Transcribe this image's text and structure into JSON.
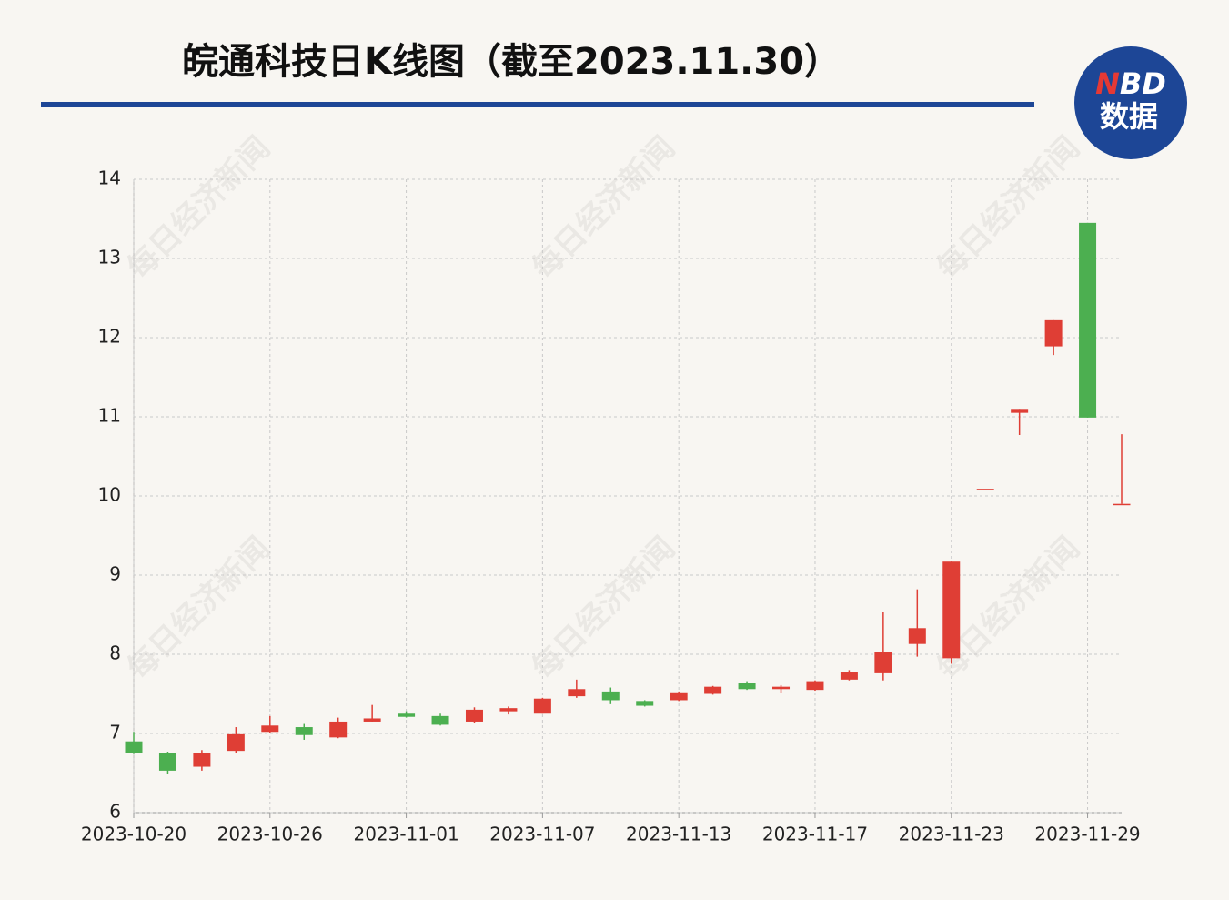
{
  "chart_data": {
    "type": "candlestick",
    "title": "皖通科技日K线图（截至2023.11.30）",
    "logo": {
      "brand": "NBD",
      "label": "数据"
    },
    "watermark": "每日经济新闻",
    "x": [
      "2023-10-20",
      null,
      null,
      null,
      "2023-10-26",
      null,
      null,
      null,
      "2023-11-01",
      null,
      null,
      null,
      "2023-11-07",
      null,
      null,
      null,
      "2023-11-13",
      null,
      null,
      null,
      "2023-11-17",
      null,
      null,
      null,
      "2023-11-23",
      null,
      null,
      null,
      "2023-11-29",
      null
    ],
    "open": [
      6.9,
      6.75,
      6.58,
      6.78,
      7.02,
      7.08,
      6.95,
      7.15,
      7.25,
      7.22,
      7.15,
      7.28,
      7.25,
      7.47,
      7.53,
      7.41,
      7.42,
      7.5,
      7.64,
      7.56,
      7.55,
      7.68,
      7.76,
      8.13,
      7.95,
      10.09,
      11.05,
      11.89,
      13.45,
      9.9
    ],
    "high": [
      7.02,
      6.77,
      6.79,
      7.08,
      7.22,
      7.12,
      7.2,
      7.36,
      7.28,
      7.25,
      7.33,
      7.34,
      7.45,
      7.68,
      7.58,
      7.42,
      7.53,
      7.6,
      7.66,
      7.61,
      7.67,
      7.8,
      8.53,
      8.82,
      9.17,
      10.09,
      11.1,
      12.22,
      13.45,
      10.78
    ],
    "low": [
      6.74,
      6.49,
      6.53,
      6.75,
      7.0,
      6.92,
      6.94,
      7.15,
      7.2,
      7.1,
      7.13,
      7.24,
      7.25,
      7.45,
      7.37,
      7.34,
      7.41,
      7.49,
      7.55,
      7.51,
      7.54,
      7.67,
      7.67,
      7.97,
      7.88,
      10.09,
      10.77,
      11.78,
      10.99,
      9.9
    ],
    "close": [
      6.75,
      6.53,
      6.75,
      6.99,
      7.1,
      6.98,
      7.15,
      7.19,
      7.21,
      7.11,
      7.3,
      7.32,
      7.44,
      7.56,
      7.42,
      7.35,
      7.52,
      7.59,
      7.56,
      7.59,
      7.66,
      7.77,
      8.03,
      8.33,
      9.17,
      10.09,
      11.1,
      12.22,
      10.99,
      9.9
    ],
    "up_color": "#df3e35",
    "down_color": "#4caf50",
    "ylim": [
      6,
      14
    ],
    "yticks": [
      6,
      7,
      8,
      9,
      10,
      11,
      12,
      13,
      14
    ],
    "grid": true
  }
}
